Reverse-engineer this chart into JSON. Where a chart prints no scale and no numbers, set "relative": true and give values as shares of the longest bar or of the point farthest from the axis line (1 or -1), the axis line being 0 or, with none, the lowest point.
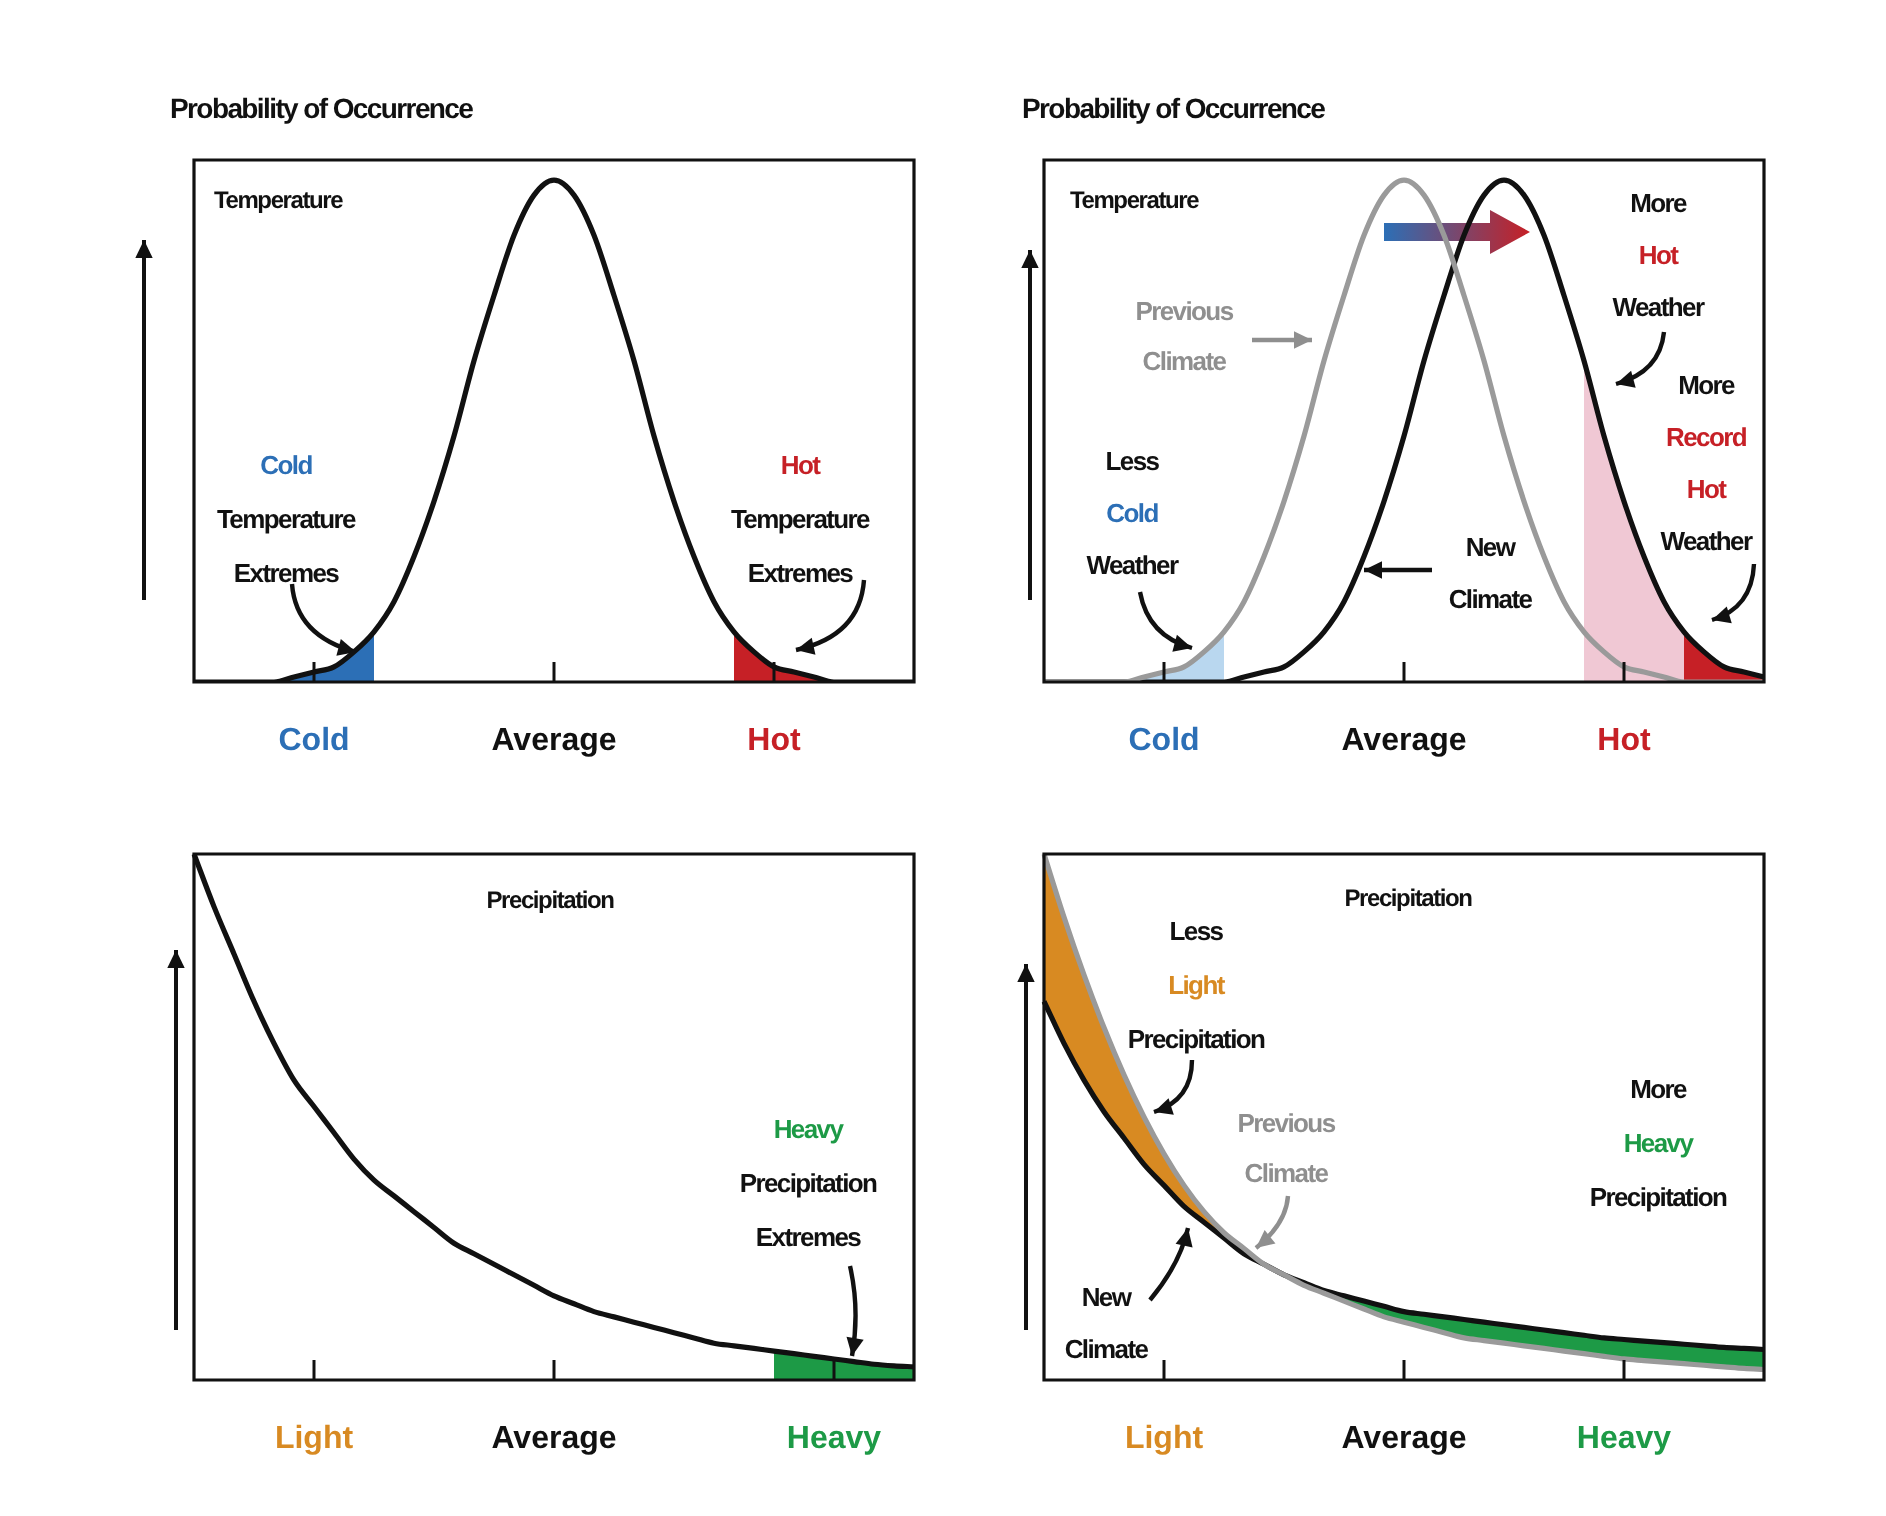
{
  "chart_data": [
    {
      "type": "line",
      "title": "Temperature",
      "ylabel": "Probability of Occurrence",
      "relative": true,
      "tick_labels": "x",
      "categories": [
        null,
        null,
        null,
        null,
        null,
        null,
        "Cold",
        null,
        null,
        null,
        null,
        null,
        null,
        null,
        null,
        null,
        null,
        null,
        "Average",
        null,
        null,
        null,
        null,
        null,
        null,
        null,
        null,
        null,
        null,
        "Hot",
        null,
        null,
        null,
        null,
        null,
        null,
        null
      ],
      "series": [
        {
          "type": "line",
          "color": "#111111",
          "values": [
            0,
            0,
            0,
            0,
            0,
            0.01,
            0.02,
            0.03,
            0.06,
            0.1,
            0.16,
            0.25,
            0.36,
            0.49,
            0.64,
            0.77,
            0.89,
            0.97,
            1,
            0.97,
            0.89,
            0.77,
            0.64,
            0.49,
            0.36,
            0.25,
            0.16,
            0.1,
            0.06,
            0.03,
            0.02,
            0.01,
            0,
            0,
            0,
            0,
            0
          ]
        },
        {
          "type": "area",
          "color": "#2c6fb6",
          "values": [
            0,
            0,
            0,
            0,
            0,
            0.01,
            0.02,
            0.03,
            0.06,
            0.1,
            null,
            null,
            null,
            null,
            null,
            null,
            null,
            null,
            null,
            null,
            null,
            null,
            null,
            null,
            null,
            null,
            null,
            null,
            null,
            null,
            null,
            null,
            null,
            null,
            null,
            null,
            null
          ]
        },
        {
          "type": "area",
          "color": "#c62026",
          "values": [
            null,
            null,
            null,
            null,
            null,
            null,
            null,
            null,
            null,
            null,
            null,
            null,
            null,
            null,
            null,
            null,
            null,
            null,
            null,
            null,
            null,
            null,
            null,
            null,
            null,
            null,
            null,
            0.1,
            0.06,
            0.03,
            0.02,
            0.01,
            0,
            0,
            0,
            0,
            0
          ]
        }
      ],
      "annotations": [
        "Cold Temperature Extremes",
        "Hot Temperature Extremes"
      ]
    },
    {
      "type": "line",
      "title": "Temperature",
      "ylabel": "Probability of Occurrence",
      "relative": true,
      "tick_labels": "x",
      "categories": [
        null,
        null,
        null,
        null,
        null,
        null,
        "Cold",
        null,
        null,
        null,
        null,
        null,
        null,
        null,
        null,
        null,
        null,
        null,
        "Average",
        null,
        null,
        null,
        null,
        null,
        null,
        null,
        null,
        null,
        null,
        "Hot",
        null,
        null,
        null,
        null,
        null,
        null,
        null
      ],
      "series": [
        {
          "type": "line",
          "color": "#9a9a9a",
          "values": [
            0,
            0,
            0,
            0,
            0,
            0.01,
            0.02,
            0.03,
            0.06,
            0.1,
            0.16,
            0.25,
            0.36,
            0.49,
            0.64,
            0.77,
            0.89,
            0.97,
            1,
            0.97,
            0.89,
            0.77,
            0.64,
            0.49,
            0.36,
            0.25,
            0.16,
            0.1,
            0.06,
            0.03,
            0.02,
            0.01,
            0,
            0,
            0,
            0,
            0
          ]
        },
        {
          "type": "line",
          "color": "#111111",
          "values": [
            0,
            0,
            0,
            0,
            0,
            0,
            0,
            0,
            0,
            0,
            0.01,
            0.02,
            0.03,
            0.06,
            0.1,
            0.16,
            0.25,
            0.36,
            0.49,
            0.64,
            0.77,
            0.89,
            0.97,
            1,
            0.97,
            0.89,
            0.77,
            0.64,
            0.49,
            0.36,
            0.25,
            0.16,
            0.1,
            0.06,
            0.03,
            0.02,
            0.01
          ]
        },
        {
          "type": "area",
          "color": "#b9d7ef",
          "values": [
            0,
            0,
            0,
            0,
            0,
            0.01,
            0.02,
            0.03,
            0.06,
            0.1,
            null,
            null,
            null,
            null,
            null,
            null,
            null,
            null,
            null,
            null,
            null,
            null,
            null,
            null,
            null,
            null,
            null,
            null,
            null,
            null,
            null,
            null,
            null,
            null,
            null,
            null,
            null
          ]
        },
        {
          "type": "area",
          "color": "#f0c8d4",
          "values": [
            null,
            null,
            null,
            null,
            null,
            null,
            null,
            null,
            null,
            null,
            null,
            null,
            null,
            null,
            null,
            null,
            null,
            null,
            null,
            null,
            null,
            null,
            null,
            null,
            null,
            null,
            null,
            0.64,
            0.49,
            0.36,
            0.25,
            0.16,
            0.1,
            null,
            null,
            null,
            null
          ]
        },
        {
          "type": "area",
          "color": "#c62026",
          "values": [
            null,
            null,
            null,
            null,
            null,
            null,
            null,
            null,
            null,
            null,
            null,
            null,
            null,
            null,
            null,
            null,
            null,
            null,
            null,
            null,
            null,
            null,
            null,
            null,
            null,
            null,
            null,
            null,
            null,
            null,
            null,
            null,
            0.1,
            0.06,
            0.03,
            0.02,
            0.01
          ]
        }
      ],
      "annotations": [
        "Previous Climate",
        "Less Cold Weather",
        "New Climate",
        "More Hot Weather",
        "More Record Hot Weather"
      ]
    },
    {
      "type": "line",
      "title": "Precipitation",
      "relative": true,
      "tick_labels": "x",
      "categories": [
        null,
        null,
        null,
        null,
        null,
        null,
        "Light",
        null,
        null,
        null,
        null,
        null,
        null,
        null,
        null,
        null,
        null,
        null,
        "Average",
        null,
        null,
        null,
        null,
        null,
        null,
        null,
        null,
        null,
        null,
        null,
        null,
        null,
        "Heavy",
        null,
        null,
        null,
        null
      ],
      "series": [
        {
          "type": "line",
          "color": "#111111",
          "values": [
            1,
            0.9,
            0.81,
            0.72,
            0.64,
            0.57,
            0.52,
            0.47,
            0.42,
            0.38,
            0.35,
            0.32,
            0.29,
            0.26,
            0.24,
            0.22,
            0.2,
            0.18,
            0.16,
            0.145,
            0.13,
            0.12,
            0.11,
            0.1,
            0.09,
            0.08,
            0.07,
            0.065,
            0.06,
            0.055,
            0.05,
            0.045,
            0.04,
            0.035,
            0.03,
            0.027,
            0.025
          ]
        },
        {
          "type": "area",
          "color": "#1d9a46",
          "values": [
            null,
            null,
            null,
            null,
            null,
            null,
            null,
            null,
            null,
            null,
            null,
            null,
            null,
            null,
            null,
            null,
            null,
            null,
            null,
            null,
            null,
            null,
            null,
            null,
            null,
            null,
            null,
            null,
            null,
            0.055,
            0.05,
            0.045,
            0.04,
            0.035,
            0.03,
            0.027,
            0.025
          ]
        }
      ],
      "annotations": [
        "Heavy Precipitation Extremes"
      ]
    },
    {
      "type": "line",
      "title": "Precipitation",
      "relative": true,
      "tick_labels": "x",
      "categories": [
        null,
        null,
        null,
        null,
        null,
        null,
        "Light",
        null,
        null,
        null,
        null,
        null,
        null,
        null,
        null,
        null,
        null,
        null,
        "Average",
        null,
        null,
        null,
        null,
        null,
        null,
        null,
        null,
        null,
        null,
        "Heavy",
        null,
        null,
        null,
        null,
        null,
        null,
        null
      ],
      "series": [
        {
          "type": "area",
          "color": "#d88a22",
          "values": [
            1,
            0.88,
            0.77,
            0.67,
            0.58,
            0.5,
            0.43,
            0.37,
            0.32,
            0.28,
            0.25,
            0.22,
            0.2,
            null,
            null,
            null,
            null,
            null,
            null,
            null,
            null,
            null,
            null,
            null,
            null,
            null,
            null,
            null,
            null,
            null,
            null,
            null,
            null,
            null,
            null,
            null,
            null
          ]
        },
        {
          "type": "area",
          "color": "#1d9a46",
          "values": [
            null,
            null,
            null,
            null,
            null,
            null,
            null,
            null,
            null,
            null,
            null,
            null,
            0.2,
            0.185,
            0.17,
            0.16,
            0.15,
            0.14,
            0.13,
            0.125,
            0.12,
            0.115,
            0.11,
            0.105,
            0.1,
            0.095,
            0.09,
            0.085,
            0.08,
            0.077,
            0.074,
            0.071,
            0.068,
            0.065,
            0.062,
            0.06,
            0.058
          ]
        },
        {
          "type": "line",
          "color": "#9a9a9a",
          "values": [
            1,
            0.88,
            0.77,
            0.67,
            0.58,
            0.5,
            0.43,
            0.37,
            0.32,
            0.28,
            0.25,
            0.22,
            0.2,
            0.18,
            0.165,
            0.15,
            0.135,
            0.12,
            0.11,
            0.1,
            0.09,
            0.08,
            0.075,
            0.07,
            0.065,
            0.06,
            0.055,
            0.05,
            0.045,
            0.04,
            0.037,
            0.034,
            0.031,
            0.028,
            0.025,
            0.022,
            0.02
          ]
        },
        {
          "type": "line",
          "color": "#111111",
          "values": [
            0.72,
            0.64,
            0.57,
            0.51,
            0.46,
            0.41,
            0.37,
            0.33,
            0.3,
            0.27,
            0.24,
            0.22,
            0.2,
            0.185,
            0.17,
            0.16,
            0.15,
            0.14,
            0.13,
            0.125,
            0.12,
            0.115,
            0.11,
            0.105,
            0.1,
            0.095,
            0.09,
            0.085,
            0.08,
            0.077,
            0.074,
            0.071,
            0.068,
            0.065,
            0.062,
            0.06,
            0.058
          ]
        }
      ],
      "annotations": [
        "Less Light Precipitation",
        "Previous Climate",
        "New Climate",
        "More Heavy Precipitation"
      ]
    }
  ]
}
